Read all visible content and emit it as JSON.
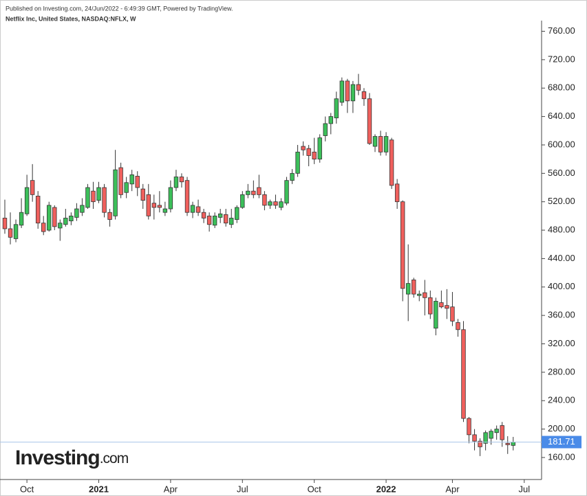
{
  "header": {
    "published": "Published on Investing.com, 24/Jun/2022 - 6:49:39 GMT, Powered by TradingView.",
    "instrument": "Netflix Inc, United States, NASDAQ:NFLX, W"
  },
  "logo": {
    "main": "Investing",
    "suffix": ".com"
  },
  "chart_data": {
    "type": "candlestick",
    "categories": [
      null,
      null,
      null,
      null,
      "Oct",
      null,
      null,
      null,
      null,
      null,
      null,
      null,
      null,
      null,
      null,
      null,
      null,
      "2021",
      null,
      null,
      null,
      null,
      null,
      null,
      null,
      null,
      null,
      null,
      null,
      null,
      "Apr",
      null,
      null,
      null,
      null,
      null,
      null,
      null,
      null,
      null,
      null,
      null,
      null,
      "Jul",
      null,
      null,
      null,
      null,
      null,
      null,
      null,
      null,
      null,
      null,
      null,
      null,
      "Oct",
      null,
      null,
      null,
      null,
      null,
      null,
      null,
      null,
      null,
      null,
      null,
      null,
      "2022",
      null,
      null,
      null,
      null,
      null,
      null,
      null,
      null,
      null,
      null,
      null,
      "Apr",
      null,
      null,
      null,
      null,
      null,
      null,
      null,
      null,
      null,
      null,
      null,
      null,
      "Jul"
    ],
    "open": [
      497,
      482,
      468,
      487,
      503,
      550,
      528,
      490,
      480,
      512,
      483,
      488,
      493,
      498,
      505,
      512,
      535,
      522,
      540,
      505,
      500,
      568,
      533,
      545,
      556,
      538,
      530,
      518,
      515,
      505,
      510,
      540,
      555,
      550,
      505,
      513,
      505,
      500,
      487,
      498,
      502,
      488,
      495,
      512,
      530,
      535,
      540,
      530,
      515,
      520,
      512,
      518,
      550,
      560,
      598,
      595,
      590,
      580,
      613,
      630,
      638,
      660,
      690,
      662,
      685,
      675,
      665,
      598,
      612,
      590,
      607,
      545,
      520,
      390,
      410,
      388,
      392,
      385,
      342,
      378,
      374,
      372,
      350,
      340,
      215,
      192,
      183,
      180,
      187,
      195,
      205,
      180,
      177,
      null,
      null
    ],
    "high": [
      523,
      505,
      495,
      525,
      558,
      573,
      535,
      500,
      520,
      515,
      495,
      510,
      505,
      518,
      525,
      545,
      548,
      548,
      545,
      510,
      593,
      575,
      555,
      565,
      563,
      545,
      545,
      530,
      535,
      520,
      550,
      565,
      560,
      555,
      520,
      523,
      510,
      505,
      505,
      510,
      510,
      510,
      515,
      535,
      545,
      550,
      558,
      535,
      523,
      530,
      525,
      555,
      566,
      600,
      605,
      600,
      610,
      615,
      640,
      645,
      675,
      695,
      693,
      690,
      700,
      680,
      673,
      615,
      620,
      618,
      610,
      552,
      522,
      460,
      413,
      395,
      410,
      395,
      385,
      395,
      397,
      393,
      355,
      352,
      217,
      200,
      187,
      198,
      200,
      205,
      210,
      190,
      189,
      null,
      null
    ],
    "low": [
      475,
      460,
      463,
      483,
      500,
      520,
      482,
      473,
      478,
      480,
      465,
      485,
      487,
      493,
      500,
      510,
      510,
      518,
      498,
      485,
      495,
      525,
      525,
      535,
      528,
      510,
      495,
      495,
      505,
      500,
      505,
      535,
      540,
      500,
      497,
      500,
      490,
      478,
      483,
      490,
      485,
      483,
      490,
      510,
      525,
      525,
      525,
      508,
      510,
      510,
      508,
      515,
      545,
      555,
      585,
      570,
      573,
      575,
      605,
      615,
      630,
      655,
      645,
      645,
      670,
      655,
      600,
      590,
      585,
      585,
      538,
      510,
      380,
      352,
      385,
      380,
      360,
      355,
      332,
      370,
      355,
      345,
      330,
      210,
      180,
      170,
      162,
      170,
      178,
      185,
      175,
      165,
      170,
      null,
      null
    ],
    "close": [
      482,
      470,
      488,
      505,
      540,
      530,
      490,
      478,
      515,
      485,
      490,
      497,
      500,
      510,
      515,
      540,
      520,
      540,
      505,
      495,
      565,
      530,
      547,
      558,
      540,
      522,
      500,
      512,
      512,
      510,
      540,
      555,
      548,
      505,
      515,
      505,
      497,
      488,
      500,
      503,
      490,
      497,
      512,
      530,
      535,
      530,
      530,
      515,
      520,
      515,
      520,
      550,
      560,
      590,
      593,
      585,
      580,
      610,
      630,
      640,
      665,
      690,
      662,
      685,
      677,
      665,
      602,
      612,
      590,
      612,
      543,
      520,
      398,
      405,
      390,
      390,
      385,
      362,
      380,
      372,
      370,
      352,
      340,
      215,
      192,
      183,
      175,
      195,
      197,
      200,
      185,
      178,
      181.71,
      null,
      null
    ],
    "up_color": "#3cbf5a",
    "down_color": "#f0605d",
    "ylim": [
      129,
      775
    ],
    "yticks": [
      {
        "value": 160,
        "label": "160.00"
      },
      {
        "value": 200,
        "label": "200.00"
      },
      {
        "value": 240,
        "label": "240.00"
      },
      {
        "value": 280,
        "label": "280.00"
      },
      {
        "value": 320,
        "label": "320.00"
      },
      {
        "value": 360,
        "label": "360.00"
      },
      {
        "value": 400,
        "label": "400.00"
      },
      {
        "value": 440,
        "label": "440.00"
      },
      {
        "value": 480,
        "label": "480.00"
      },
      {
        "value": 520,
        "label": "520.00"
      },
      {
        "value": 560,
        "label": "560.00"
      },
      {
        "value": 600,
        "label": "600.00"
      },
      {
        "value": 640,
        "label": "640.00"
      },
      {
        "value": 680,
        "label": "680.00"
      },
      {
        "value": 720,
        "label": "720.00"
      },
      {
        "value": 760,
        "label": "760.00"
      }
    ],
    "current_price": {
      "value": 181.71,
      "color": "#4a8be8"
    }
  }
}
